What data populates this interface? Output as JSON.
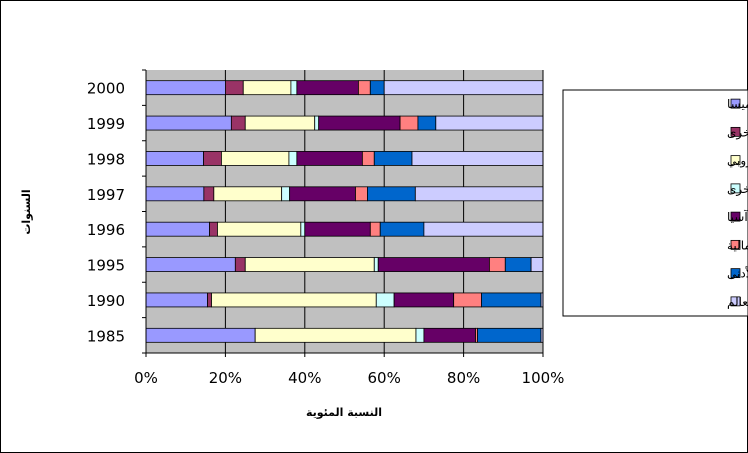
{
  "chart_data": {
    "type": "bar",
    "orientation": "horizontal",
    "stacked": "percent",
    "xlabel": "النسبة المئوية",
    "ylabel": "السنوات",
    "xlim": [
      0,
      100
    ],
    "x_ticks": [
      "0%",
      "20%",
      "40%",
      "60%",
      "80%",
      "100%"
    ],
    "grid": true,
    "legend_position": "right",
    "categories": [
      "2000",
      "1999",
      "1998",
      "1997",
      "1996",
      "1995",
      "1990",
      "1985"
    ],
    "series": [
      {
        "name": "الكوميسا",
        "color": "#9999ff",
        "values": [
          20,
          21.5,
          14.5,
          14.5,
          16,
          22.5,
          15.5,
          27.5
        ]
      },
      {
        "name": "البلدان الإفريقية الأخرى",
        "color": "#993366",
        "values": [
          4.5,
          3.5,
          4.5,
          2.5,
          2,
          2.5,
          1,
          0
        ]
      },
      {
        "name": "الاتحاد الأوروبي",
        "color": "#ffffcc",
        "values": [
          12,
          17.5,
          17,
          17,
          21,
          32.5,
          41.5,
          40.5
        ]
      },
      {
        "name": "البلدان الأوروبية الأخرى",
        "color": "#ccffff",
        "values": [
          1.5,
          1,
          2,
          2,
          1,
          1,
          4.5,
          2
        ]
      },
      {
        "name": "آسيا",
        "color": "#660066",
        "values": [
          15.5,
          20.5,
          16.5,
          16.5,
          16.5,
          28,
          15,
          13
        ]
      },
      {
        "name": "أمريكا الشمالية",
        "color": "#ff8080",
        "values": [
          3,
          4.5,
          3,
          3,
          2.5,
          4,
          7,
          0.5
        ]
      },
      {
        "name": "الشرق الأدنى",
        "color": "#0066cc",
        "values": [
          3.5,
          4.5,
          9.5,
          12,
          11,
          6.5,
          15,
          16
        ]
      },
      {
        "name": "بقية دول العالم",
        "color": "#ccccff",
        "values": [
          40,
          27,
          33,
          32,
          30,
          3,
          0.5,
          0.5
        ]
      }
    ]
  }
}
